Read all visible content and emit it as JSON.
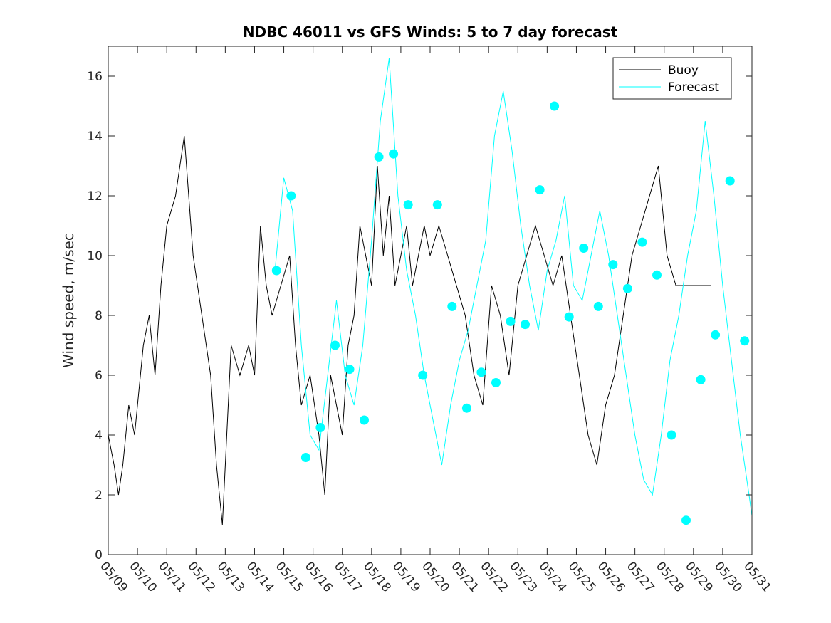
{
  "chart_data": {
    "type": "line",
    "title": "NDBC 46011 vs GFS Winds: 5 to 7 day forecast",
    "xlabel": "",
    "ylabel": "Wind speed, m/sec",
    "ylim": [
      0,
      17
    ],
    "yticks": [
      0,
      2,
      4,
      6,
      8,
      10,
      12,
      14,
      16
    ],
    "xlim": [
      "05/09",
      "05/31"
    ],
    "xticks": [
      "05/09",
      "05/10",
      "05/11",
      "05/12",
      "05/13",
      "05/14",
      "05/15",
      "05/16",
      "05/17",
      "05/18",
      "05/19",
      "05/20",
      "05/21",
      "05/22",
      "05/23",
      "05/24",
      "05/25",
      "05/26",
      "05/27",
      "05/28",
      "05/29",
      "05/30",
      "05/31"
    ],
    "grid": false,
    "legend": {
      "position": "top-right",
      "entries": [
        "Buoy",
        "Forecast"
      ]
    },
    "colors": {
      "buoy": "#000000",
      "forecast": "#00ffff",
      "markers": "#00ffff"
    },
    "series": [
      {
        "name": "Buoy",
        "x": [
          0.0,
          0.2,
          0.35,
          0.5,
          0.7,
          0.9,
          1.0,
          1.2,
          1.4,
          1.6,
          1.8,
          2.0,
          2.3,
          2.6,
          2.9,
          3.2,
          3.5,
          3.7,
          3.9,
          4.2,
          4.5,
          4.8,
          5.0,
          5.2,
          5.4,
          5.6,
          5.9,
          6.2,
          6.4,
          6.6,
          6.9,
          7.2,
          7.4,
          7.6,
          7.8,
          8.0,
          8.2,
          8.4,
          8.6,
          8.8,
          9.0,
          9.2,
          9.4,
          9.6,
          9.8,
          10.0,
          10.2,
          10.4,
          10.6,
          10.8,
          11.0,
          11.3,
          11.6,
          11.9,
          12.2,
          12.5,
          12.8,
          13.1,
          13.4,
          13.7,
          14.0,
          14.3,
          14.6,
          14.9,
          15.2,
          15.5,
          15.8,
          16.1,
          16.4,
          16.7,
          17.0,
          17.3,
          17.6,
          17.9,
          18.2,
          18.5,
          18.8,
          19.1,
          19.4,
          19.7,
          20.0,
          20.2,
          20.4,
          20.6
        ],
        "y": [
          4,
          3,
          2,
          3,
          5,
          4,
          5,
          7,
          8,
          6,
          9,
          11,
          12,
          14,
          10,
          8,
          6,
          3,
          1,
          7,
          6,
          7,
          6,
          11,
          9,
          8,
          9,
          10,
          7,
          5,
          6,
          4,
          2,
          6,
          5,
          4,
          7,
          8,
          11,
          10,
          9,
          13,
          10,
          12,
          9,
          10,
          11,
          9,
          10,
          11,
          10,
          11,
          10,
          9,
          8,
          6,
          5,
          9,
          8,
          6,
          9,
          10,
          11,
          10,
          9,
          10,
          8,
          6,
          4,
          3,
          5,
          6,
          8,
          10,
          11,
          12,
          13,
          10,
          9,
          9,
          9,
          9,
          9,
          9
        ]
      },
      {
        "name": "Forecast",
        "x": [
          5.7,
          6.0,
          6.3,
          6.6,
          6.9,
          7.2,
          7.5,
          7.8,
          8.1,
          8.4,
          8.7,
          9.0,
          9.3,
          9.6,
          9.9,
          10.2,
          10.5,
          10.8,
          11.1,
          11.4,
          11.7,
          12.0,
          12.3,
          12.6,
          12.9,
          13.2,
          13.5,
          13.8,
          14.1,
          14.4,
          14.7,
          15.0,
          15.3,
          15.6,
          15.9,
          16.2,
          16.5,
          16.8,
          17.1,
          17.4,
          17.7,
          18.0,
          18.3,
          18.6,
          18.9,
          19.2,
          19.5,
          19.8,
          20.1,
          20.4,
          20.7,
          21.0,
          21.3,
          21.6,
          21.9,
          22.0
        ],
        "y": [
          9.5,
          12.6,
          11.5,
          7.0,
          4.0,
          3.5,
          6.0,
          8.5,
          6.0,
          5.0,
          7.0,
          10.5,
          14.5,
          16.6,
          12.0,
          9.5,
          8.0,
          6.0,
          4.5,
          3.0,
          5.0,
          6.5,
          7.5,
          9.0,
          10.5,
          14.0,
          15.5,
          13.5,
          11.0,
          9.0,
          7.5,
          9.5,
          10.5,
          12.0,
          9.0,
          8.5,
          10.0,
          11.5,
          10.0,
          8.0,
          6.0,
          4.0,
          2.5,
          2.0,
          4.0,
          6.5,
          8.0,
          10.0,
          11.5,
          14.5,
          12.0,
          9.0,
          6.5,
          4.0,
          2.0,
          1.3
        ]
      }
    ],
    "markers": {
      "name": "Forecast points",
      "x": [
        5.75,
        6.25,
        6.75,
        7.25,
        7.75,
        8.25,
        8.75,
        9.25,
        9.75,
        10.25,
        10.75,
        11.25,
        11.75,
        12.25,
        12.75,
        13.25,
        13.75,
        14.25,
        14.75,
        15.25,
        15.75,
        16.25,
        16.75,
        17.25,
        17.75,
        18.25,
        18.75,
        19.25,
        19.75,
        20.25,
        20.75,
        21.25,
        21.75
      ],
      "y": [
        9.5,
        12.0,
        3.25,
        4.25,
        7.0,
        6.2,
        4.5,
        13.3,
        13.4,
        11.7,
        6.0,
        11.7,
        8.3,
        4.9,
        6.1,
        5.75,
        7.8,
        7.7,
        12.2,
        15.0,
        7.95,
        10.25,
        8.3,
        9.7,
        8.9,
        10.45,
        9.35,
        4.0,
        1.15,
        5.85,
        7.35,
        12.5,
        7.15
      ]
    }
  }
}
